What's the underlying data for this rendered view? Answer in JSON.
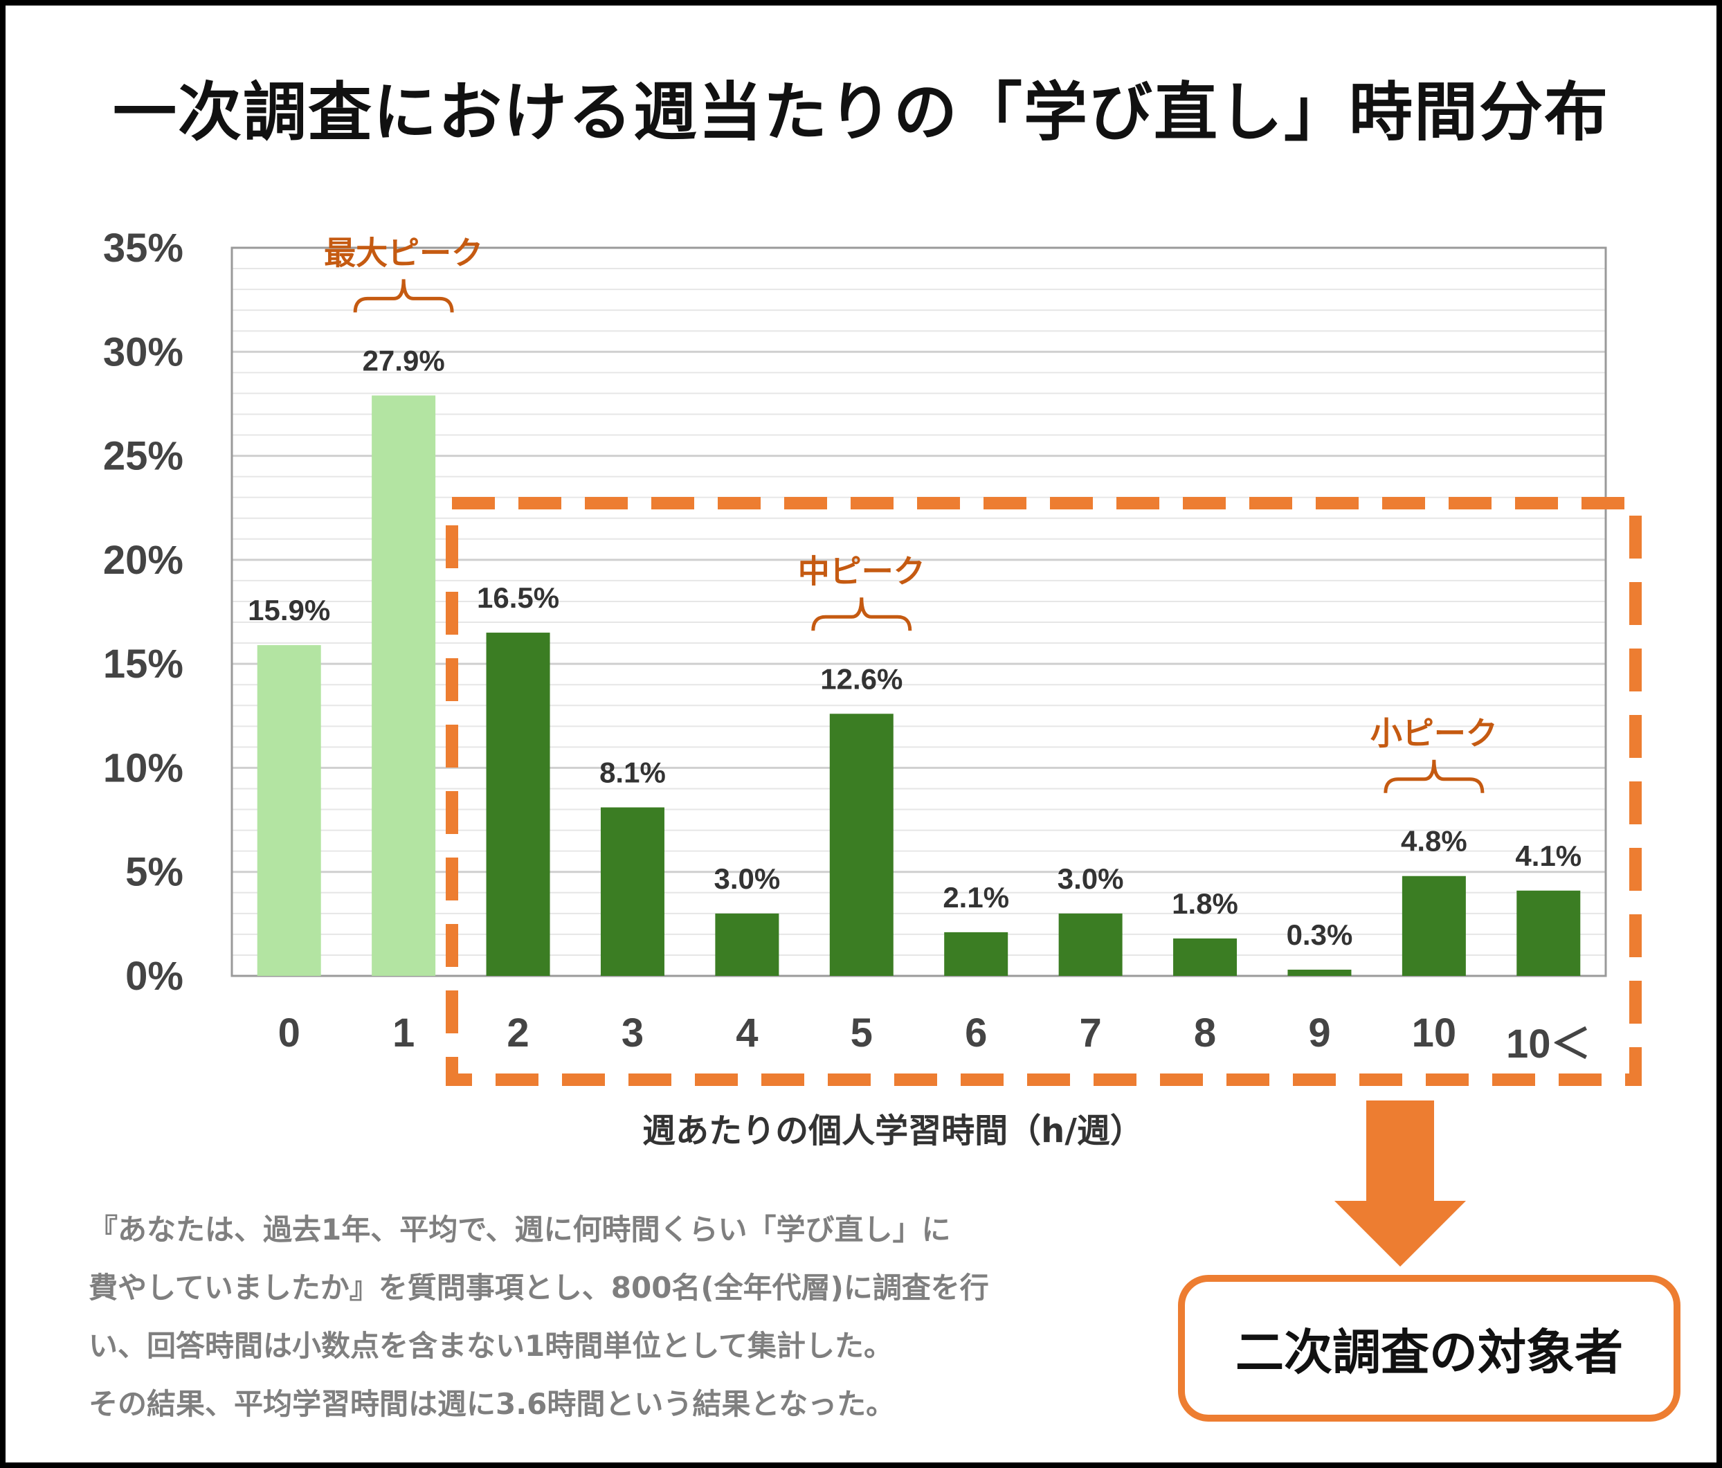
{
  "title": "一次調査における週当たりの「学び直し」時間分布",
  "chart_data": {
    "type": "bar",
    "categories": [
      "0",
      "1",
      "2",
      "3",
      "4",
      "5",
      "6",
      "7",
      "8",
      "9",
      "10",
      "10＜"
    ],
    "values": [
      15.9,
      27.9,
      16.5,
      8.1,
      3.0,
      12.6,
      2.1,
      3.0,
      1.8,
      0.3,
      4.8,
      4.1
    ],
    "data_labels": [
      "15.9%",
      "27.9%",
      "16.5%",
      "8.1%",
      "3.0%",
      "12.6%",
      "2.1%",
      "3.0%",
      "1.8%",
      "0.3%",
      "4.8%",
      "4.1%"
    ],
    "xlabel": "週あたりの個人学習時間（h/週）",
    "ylabel": "",
    "ylim": [
      0,
      35
    ],
    "yticks": [
      "0%",
      "5%",
      "10%",
      "15%",
      "20%",
      "25%",
      "30%",
      "35%"
    ],
    "grid": true,
    "bar_colors": {
      "light": "#b3e4a2",
      "dark": "#3b7d23"
    },
    "light_categories": [
      "0",
      "1"
    ],
    "annotations": [
      {
        "text": "最大ピーク",
        "category": "1"
      },
      {
        "text": "中ピーク",
        "category": "5"
      },
      {
        "text": "小ピーク",
        "category": "10"
      }
    ],
    "highlight_range": [
      "2",
      "10＜"
    ],
    "highlight_color": "#ed7d31"
  },
  "note_lines": [
    "『あなたは、過去1年、平均で、週に何時間くらい「学び直し」に",
    "費やしていましたか』を質問事項とし、800名(全年代層)に調査を行",
    "い、回答時間は小数点を含まない1時間単位として集計した。",
    "その結果、平均学習時間は週に3.6時間という結果となった。"
  ],
  "target_label": "二次調査の対象者"
}
